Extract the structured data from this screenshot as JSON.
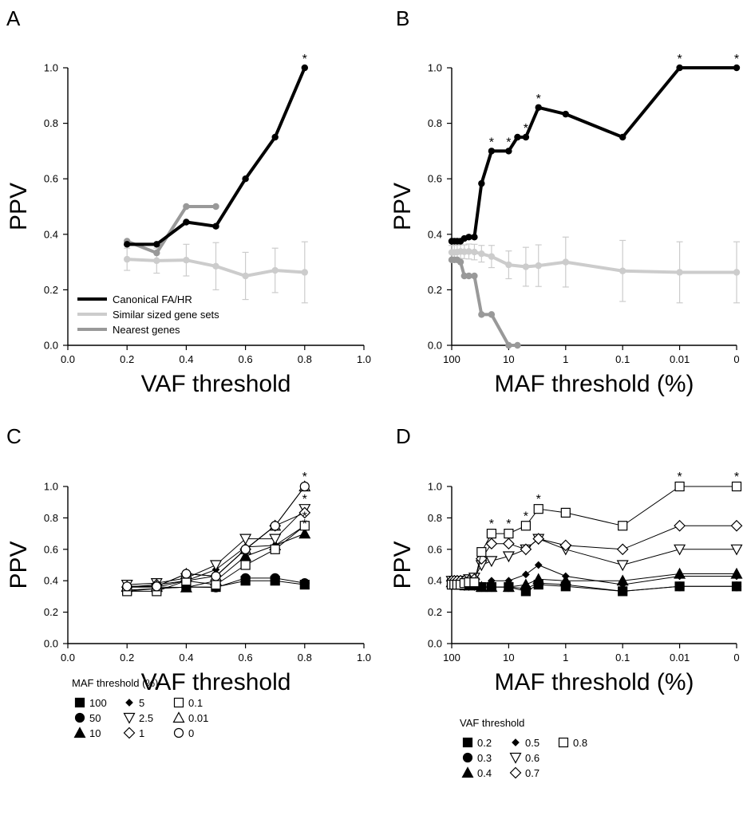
{
  "chart_data": [
    {
      "id": "A",
      "type": "line",
      "panel_label": "A",
      "xlabel": "VAF threshold",
      "ylabel": "PPV",
      "xlim": [
        0,
        1
      ],
      "ylim": [
        0,
        1
      ],
      "xticks": [
        "0.0",
        "0.2",
        "0.4",
        "0.6",
        "0.8",
        "1.0"
      ],
      "xtick_values": [
        0,
        0.2,
        0.4,
        0.6,
        0.8,
        1.0
      ],
      "yticks": [
        "0.0",
        "0.2",
        "0.4",
        "0.6",
        "0.8",
        "1.0"
      ],
      "ytick_values": [
        0,
        0.2,
        0.4,
        0.6,
        0.8,
        1.0
      ],
      "legend_position": "bottom-left",
      "series": [
        {
          "name": "Canonical FA/HR",
          "color": "#000000",
          "width": 4,
          "marker": "dot",
          "x": [
            0.2,
            0.3,
            0.4,
            0.5,
            0.6,
            0.7,
            0.8
          ],
          "y": [
            0.364,
            0.364,
            0.444,
            0.429,
            0.6,
            0.75,
            1.0
          ],
          "stars": [
            0.8
          ]
        },
        {
          "name": "Similar sized gene sets",
          "color": "#cccccc",
          "width": 4,
          "marker": "dot",
          "x": [
            0.2,
            0.3,
            0.4,
            0.5,
            0.6,
            0.7,
            0.8
          ],
          "y": [
            0.31,
            0.305,
            0.307,
            0.285,
            0.25,
            0.27,
            0.263
          ],
          "err": [
            0.04,
            0.045,
            0.057,
            0.085,
            0.085,
            0.08,
            0.11
          ]
        },
        {
          "name": "Nearest genes",
          "color": "#999999",
          "width": 4,
          "marker": "dot",
          "x": [
            0.2,
            0.3,
            0.4,
            0.5
          ],
          "y": [
            0.375,
            0.333,
            0.5,
            0.5
          ]
        }
      ]
    },
    {
      "id": "B",
      "type": "line",
      "panel_label": "B",
      "xlabel": "MAF threshold (%)",
      "ylabel": "PPV",
      "ylim": [
        0,
        1
      ],
      "xticks": [
        "100",
        "10",
        "1",
        "0.1",
        "0.01",
        "0"
      ],
      "xtick_values": [
        100,
        10,
        1,
        0.1,
        0.01,
        0
      ],
      "yticks": [
        "0.0",
        "0.2",
        "0.4",
        "0.6",
        "0.8",
        "1.0"
      ],
      "ytick_values": [
        0,
        0.2,
        0.4,
        0.6,
        0.8,
        1.0
      ],
      "series": [
        {
          "name": "Canonical FA/HR",
          "color": "#000000",
          "width": 4,
          "marker": "dot",
          "x": [
            100,
            90,
            80,
            70,
            60,
            50,
            40,
            30,
            20,
            10,
            7,
            5,
            3,
            1,
            0.1,
            0.01,
            0
          ],
          "y": [
            0.375,
            0.375,
            0.375,
            0.375,
            0.385,
            0.39,
            0.39,
            0.583,
            0.7,
            0.7,
            0.75,
            0.75,
            0.857,
            0.833,
            0.75,
            1.0,
            1.0
          ],
          "stars": [
            20,
            10,
            5,
            3,
            0.01,
            0
          ]
        },
        {
          "name": "Similar sized gene sets",
          "color": "#cccccc",
          "width": 4,
          "marker": "dot",
          "x": [
            100,
            90,
            80,
            70,
            60,
            50,
            40,
            30,
            20,
            10,
            5,
            3,
            1,
            0.1,
            0.01,
            0
          ],
          "y": [
            0.335,
            0.335,
            0.336,
            0.338,
            0.337,
            0.338,
            0.336,
            0.33,
            0.32,
            0.29,
            0.283,
            0.287,
            0.3,
            0.268,
            0.263,
            0.263
          ],
          "err": [
            0.025,
            0.025,
            0.025,
            0.025,
            0.025,
            0.027,
            0.028,
            0.03,
            0.04,
            0.05,
            0.07,
            0.075,
            0.09,
            0.11,
            0.11,
            0.11
          ]
        },
        {
          "name": "Nearest genes",
          "color": "#999999",
          "width": 4,
          "marker": "dot",
          "x": [
            100,
            90,
            80,
            70,
            60,
            50,
            40,
            30,
            20,
            10,
            7
          ],
          "y": [
            0.308,
            0.308,
            0.308,
            0.3,
            0.25,
            0.25,
            0.25,
            0.111,
            0.111,
            0.0,
            0.0
          ]
        }
      ]
    },
    {
      "id": "C",
      "type": "line",
      "panel_label": "C",
      "xlabel": "VAF threshold",
      "ylabel": "PPV",
      "xlim": [
        0,
        1
      ],
      "ylim": [
        0,
        1
      ],
      "xticks": [
        "0.0",
        "0.2",
        "0.4",
        "0.6",
        "0.8",
        "1.0"
      ],
      "xtick_values": [
        0,
        0.2,
        0.4,
        0.6,
        0.8,
        1.0
      ],
      "yticks": [
        "0.0",
        "0.2",
        "0.4",
        "0.6",
        "0.8",
        "1.0"
      ],
      "ytick_values": [
        0,
        0.2,
        0.4,
        0.6,
        0.8,
        1.0
      ],
      "legend_title": "MAF threshold (%)",
      "legend_position": "bottom-left",
      "x": [
        0.2,
        0.3,
        0.4,
        0.5,
        0.6,
        0.7,
        0.8
      ],
      "series": [
        {
          "name": "100",
          "marker": "square-filled",
          "y": [
            0.34,
            0.35,
            0.36,
            0.36,
            0.4,
            0.4,
            0.375
          ]
        },
        {
          "name": "50",
          "marker": "circle-filled",
          "y": [
            0.333,
            0.35,
            0.36,
            0.357,
            0.417,
            0.417,
            0.385
          ]
        },
        {
          "name": "10",
          "marker": "triangle-up-filled",
          "y": [
            0.36,
            0.36,
            0.357,
            0.4,
            0.556,
            0.625,
            0.7
          ]
        },
        {
          "name": "5",
          "marker": "diamond-filled-small",
          "y": [
            0.36,
            0.36,
            0.4,
            0.471,
            0.615,
            0.625,
            0.75
          ]
        },
        {
          "name": "2.5",
          "marker": "triangle-down-open",
          "y": [
            0.375,
            0.385,
            0.417,
            0.5,
            0.667,
            0.667,
            0.857
          ]
        },
        {
          "name": "1",
          "marker": "diamond-open",
          "y": [
            0.36,
            0.375,
            0.4,
            0.43,
            0.6,
            0.75,
            0.833
          ]
        },
        {
          "name": "0.1",
          "marker": "square-open",
          "y": [
            0.333,
            0.333,
            0.4,
            0.375,
            0.5,
            0.6,
            0.75
          ]
        },
        {
          "name": "0.01",
          "marker": "triangle-up-open",
          "y": [
            0.364,
            0.364,
            0.444,
            0.429,
            0.6,
            0.75,
            1.0
          ]
        },
        {
          "name": "0",
          "marker": "circle-open",
          "y": [
            0.364,
            0.364,
            0.444,
            0.429,
            0.6,
            0.75,
            1.0
          ]
        }
      ],
      "stars": [
        [
          0.8,
          1.0
        ],
        [
          0.8,
          0.857
        ],
        [
          0.8,
          0.75
        ],
        [
          0.8,
          0.7
        ]
      ]
    },
    {
      "id": "D",
      "type": "line",
      "panel_label": "D",
      "xlabel": "MAF threshold (%)",
      "ylabel": "PPV",
      "ylim": [
        0,
        1
      ],
      "xticks": [
        "100",
        "10",
        "1",
        "0.1",
        "0.01",
        "0"
      ],
      "xtick_values": [
        100,
        10,
        1,
        0.1,
        0.01,
        0
      ],
      "yticks": [
        "0.0",
        "0.2",
        "0.4",
        "0.6",
        "0.8",
        "1.0"
      ],
      "ytick_values": [
        0,
        0.2,
        0.4,
        0.6,
        0.8,
        1.0
      ],
      "legend_title": "VAF threshold",
      "legend_position": "bottom-left",
      "x": [
        100,
        90,
        80,
        70,
        60,
        50,
        40,
        30,
        20,
        10,
        5,
        3,
        1,
        0.1,
        0.01,
        0
      ],
      "series": [
        {
          "name": "0.2",
          "marker": "square-filled",
          "y": [
            0.38,
            0.38,
            0.375,
            0.375,
            0.37,
            0.37,
            0.37,
            0.36,
            0.36,
            0.36,
            0.333,
            0.375,
            0.364,
            0.333,
            0.364,
            0.364
          ]
        },
        {
          "name": "0.3",
          "marker": "circle-filled",
          "y": [
            0.38,
            0.38,
            0.38,
            0.38,
            0.375,
            0.375,
            0.375,
            0.36,
            0.36,
            0.36,
            0.35,
            0.385,
            0.375,
            0.333,
            0.364,
            0.364
          ]
        },
        {
          "name": "0.4",
          "marker": "triangle-up-filled",
          "y": [
            0.39,
            0.39,
            0.39,
            0.39,
            0.385,
            0.385,
            0.385,
            0.36,
            0.36,
            0.36,
            0.375,
            0.41,
            0.4,
            0.4,
            0.444,
            0.444
          ]
        },
        {
          "name": "0.5",
          "marker": "diamond-filled-small",
          "y": [
            0.4,
            0.4,
            0.39,
            0.37,
            0.36,
            0.36,
            0.36,
            0.37,
            0.4,
            0.4,
            0.44,
            0.5,
            0.429,
            0.375,
            0.429,
            0.429
          ]
        },
        {
          "name": "0.6",
          "marker": "triangle-down-open",
          "y": [
            0.4,
            0.4,
            0.4,
            0.4,
            0.4,
            0.41,
            0.42,
            0.5,
            0.526,
            0.556,
            0.6,
            0.667,
            0.6,
            0.5,
            0.6,
            0.6
          ]
        },
        {
          "name": "0.7",
          "marker": "diamond-open",
          "y": [
            0.4,
            0.4,
            0.4,
            0.4,
            0.4,
            0.4,
            0.41,
            0.54,
            0.636,
            0.636,
            0.6,
            0.667,
            0.625,
            0.6,
            0.75,
            0.75
          ]
        },
        {
          "name": "0.8",
          "marker": "square-open",
          "y": [
            0.375,
            0.375,
            0.375,
            0.375,
            0.385,
            0.39,
            0.39,
            0.583,
            0.7,
            0.7,
            0.75,
            0.857,
            0.833,
            0.75,
            1.0,
            1.0
          ]
        }
      ],
      "stars": [
        [
          20,
          0.7
        ],
        [
          10,
          0.7
        ],
        [
          5,
          0.75
        ],
        [
          3,
          0.857
        ],
        [
          0.01,
          1.0
        ],
        [
          0,
          1.0
        ]
      ]
    }
  ]
}
